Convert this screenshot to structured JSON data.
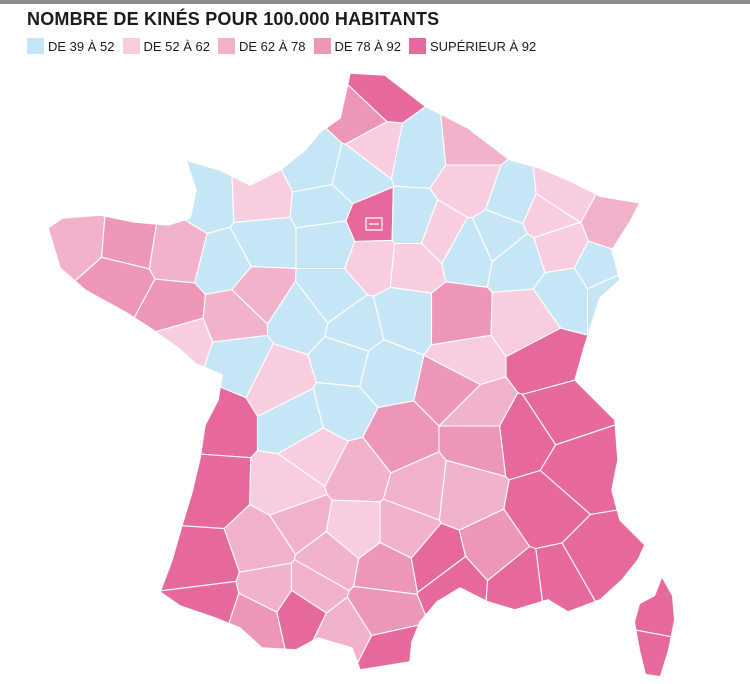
{
  "title": "NOMBRE DE KINÉS POUR 100.000 HABITANTS",
  "legend": [
    {
      "label": "DE 39 À 52",
      "color": "#c6e6f5"
    },
    {
      "label": "DE 52 À 62",
      "color": "#f7cddf"
    },
    {
      "label": "DE 62 À 78",
      "color": "#f2b2cc"
    },
    {
      "label": "DE 78 À 92",
      "color": "#ec97b8"
    },
    {
      "label": "SUPÉRIEUR À 92",
      "color": "#e5699b"
    }
  ],
  "map": {
    "departments": [
      {
        "name": "Nord",
        "cls": 4
      },
      {
        "name": "Pas-de-Calais",
        "cls": 3
      },
      {
        "name": "Somme",
        "cls": 1
      },
      {
        "name": "Aisne",
        "cls": 0
      },
      {
        "name": "Seine-Maritime",
        "cls": 0
      },
      {
        "name": "Oise",
        "cls": 0
      },
      {
        "name": "Ardennes",
        "cls": 2
      },
      {
        "name": "Marne",
        "cls": 1
      },
      {
        "name": "Meuse",
        "cls": 0
      },
      {
        "name": "Moselle",
        "cls": 1
      },
      {
        "name": "Bas-Rhin",
        "cls": 2
      },
      {
        "name": "Manche",
        "cls": 0
      },
      {
        "name": "Calvados",
        "cls": 1
      },
      {
        "name": "Eure",
        "cls": 0
      },
      {
        "name": "Paris",
        "cls": 4
      },
      {
        "name": "Seine-et-Marne",
        "cls": 0
      },
      {
        "name": "Aube",
        "cls": 1
      },
      {
        "name": "Haute-Marne",
        "cls": 0
      },
      {
        "name": "Meurthe-et-Moselle",
        "cls": 1
      },
      {
        "name": "Vosges",
        "cls": 1
      },
      {
        "name": "Haut-Rhin",
        "cls": 0
      },
      {
        "name": "Finistère",
        "cls": 2
      },
      {
        "name": "Côtes-d'Armor",
        "cls": 3
      },
      {
        "name": "Ille-et-Vilaine",
        "cls": 2
      },
      {
        "name": "Mayenne",
        "cls": 0
      },
      {
        "name": "Orne",
        "cls": 0
      },
      {
        "name": "Eure-et-Loir",
        "cls": 0
      },
      {
        "name": "Loiret",
        "cls": 1
      },
      {
        "name": "Yonne",
        "cls": 1
      },
      {
        "name": "Côte-d'Or",
        "cls": 0
      },
      {
        "name": "Haute-Saône",
        "cls": 0
      },
      {
        "name": "Doubs",
        "cls": 0
      },
      {
        "name": "Territoire de Belfort",
        "cls": 0
      },
      {
        "name": "Morbihan",
        "cls": 3
      },
      {
        "name": "Loire-Atlantique",
        "cls": 3
      },
      {
        "name": "Sarthe",
        "cls": 2
      },
      {
        "name": "Loir-et-Cher",
        "cls": 0
      },
      {
        "name": "Nièvre",
        "cls": 0
      },
      {
        "name": "Saône-et-Loire",
        "cls": 3
      },
      {
        "name": "Jura",
        "cls": 1
      },
      {
        "name": "Vendée",
        "cls": 1
      },
      {
        "name": "Maine-et-Loire",
        "cls": 2
      },
      {
        "name": "Indre-et-Loire",
        "cls": 0
      },
      {
        "name": "Cher",
        "cls": 0
      },
      {
        "name": "Allier",
        "cls": 0
      },
      {
        "name": "Ain",
        "cls": 1
      },
      {
        "name": "Haute-Savoie",
        "cls": 4
      },
      {
        "name": "Deux-Sèvres",
        "cls": 0
      },
      {
        "name": "Vienne",
        "cls": 1
      },
      {
        "name": "Indre",
        "cls": 0
      },
      {
        "name": "Creuse",
        "cls": 0
      },
      {
        "name": "Rhône",
        "cls": 3
      },
      {
        "name": "Savoie",
        "cls": 4
      },
      {
        "name": "Charente-Maritime",
        "cls": 4
      },
      {
        "name": "Charente",
        "cls": 0
      },
      {
        "name": "Haute-Vienne",
        "cls": 1
      },
      {
        "name": "Puy-de-Dôme",
        "cls": 3
      },
      {
        "name": "Loire",
        "cls": 2
      },
      {
        "name": "Isère",
        "cls": 4
      },
      {
        "name": "Gironde",
        "cls": 4
      },
      {
        "name": "Dordogne",
        "cls": 1
      },
      {
        "name": "Corrèze",
        "cls": 2
      },
      {
        "name": "Cantal",
        "cls": 2
      },
      {
        "name": "Haute-Loire",
        "cls": 2
      },
      {
        "name": "Drôme",
        "cls": 3
      },
      {
        "name": "Hautes-Alpes",
        "cls": 4
      },
      {
        "name": "Landes",
        "cls": 4
      },
      {
        "name": "Lot-et-Garonne",
        "cls": 2
      },
      {
        "name": "Lot",
        "cls": 2
      },
      {
        "name": "Aveyron",
        "cls": 1
      },
      {
        "name": "Lozère",
        "cls": 2
      },
      {
        "name": "Ardèche",
        "cls": 2
      },
      {
        "name": "Alpes-de-Haute-Provence",
        "cls": 4
      },
      {
        "name": "Alpes-Maritimes",
        "cls": 4
      },
      {
        "name": "Pyrénées-Atlantiques",
        "cls": 4
      },
      {
        "name": "Gers",
        "cls": 2
      },
      {
        "name": "Tarn-et-Garonne",
        "cls": 2
      },
      {
        "name": "Tarn",
        "cls": 3
      },
      {
        "name": "Gard",
        "cls": 4
      },
      {
        "name": "Vaucluse",
        "cls": 3
      },
      {
        "name": "Var",
        "cls": 4
      },
      {
        "name": "Hautes-Pyrénées",
        "cls": 3
      },
      {
        "name": "Haute-Garonne",
        "cls": 4
      },
      {
        "name": "Ariège",
        "cls": 2
      },
      {
        "name": "Aude",
        "cls": 3
      },
      {
        "name": "Hérault",
        "cls": 4
      },
      {
        "name": "Bouches-du-Rhône",
        "cls": 4
      },
      {
        "name": "Pyrénées-Orientales",
        "cls": 4
      },
      {
        "name": "Haute-Corse",
        "cls": 4
      },
      {
        "name": "Corse-du-Sud",
        "cls": 4
      }
    ]
  }
}
